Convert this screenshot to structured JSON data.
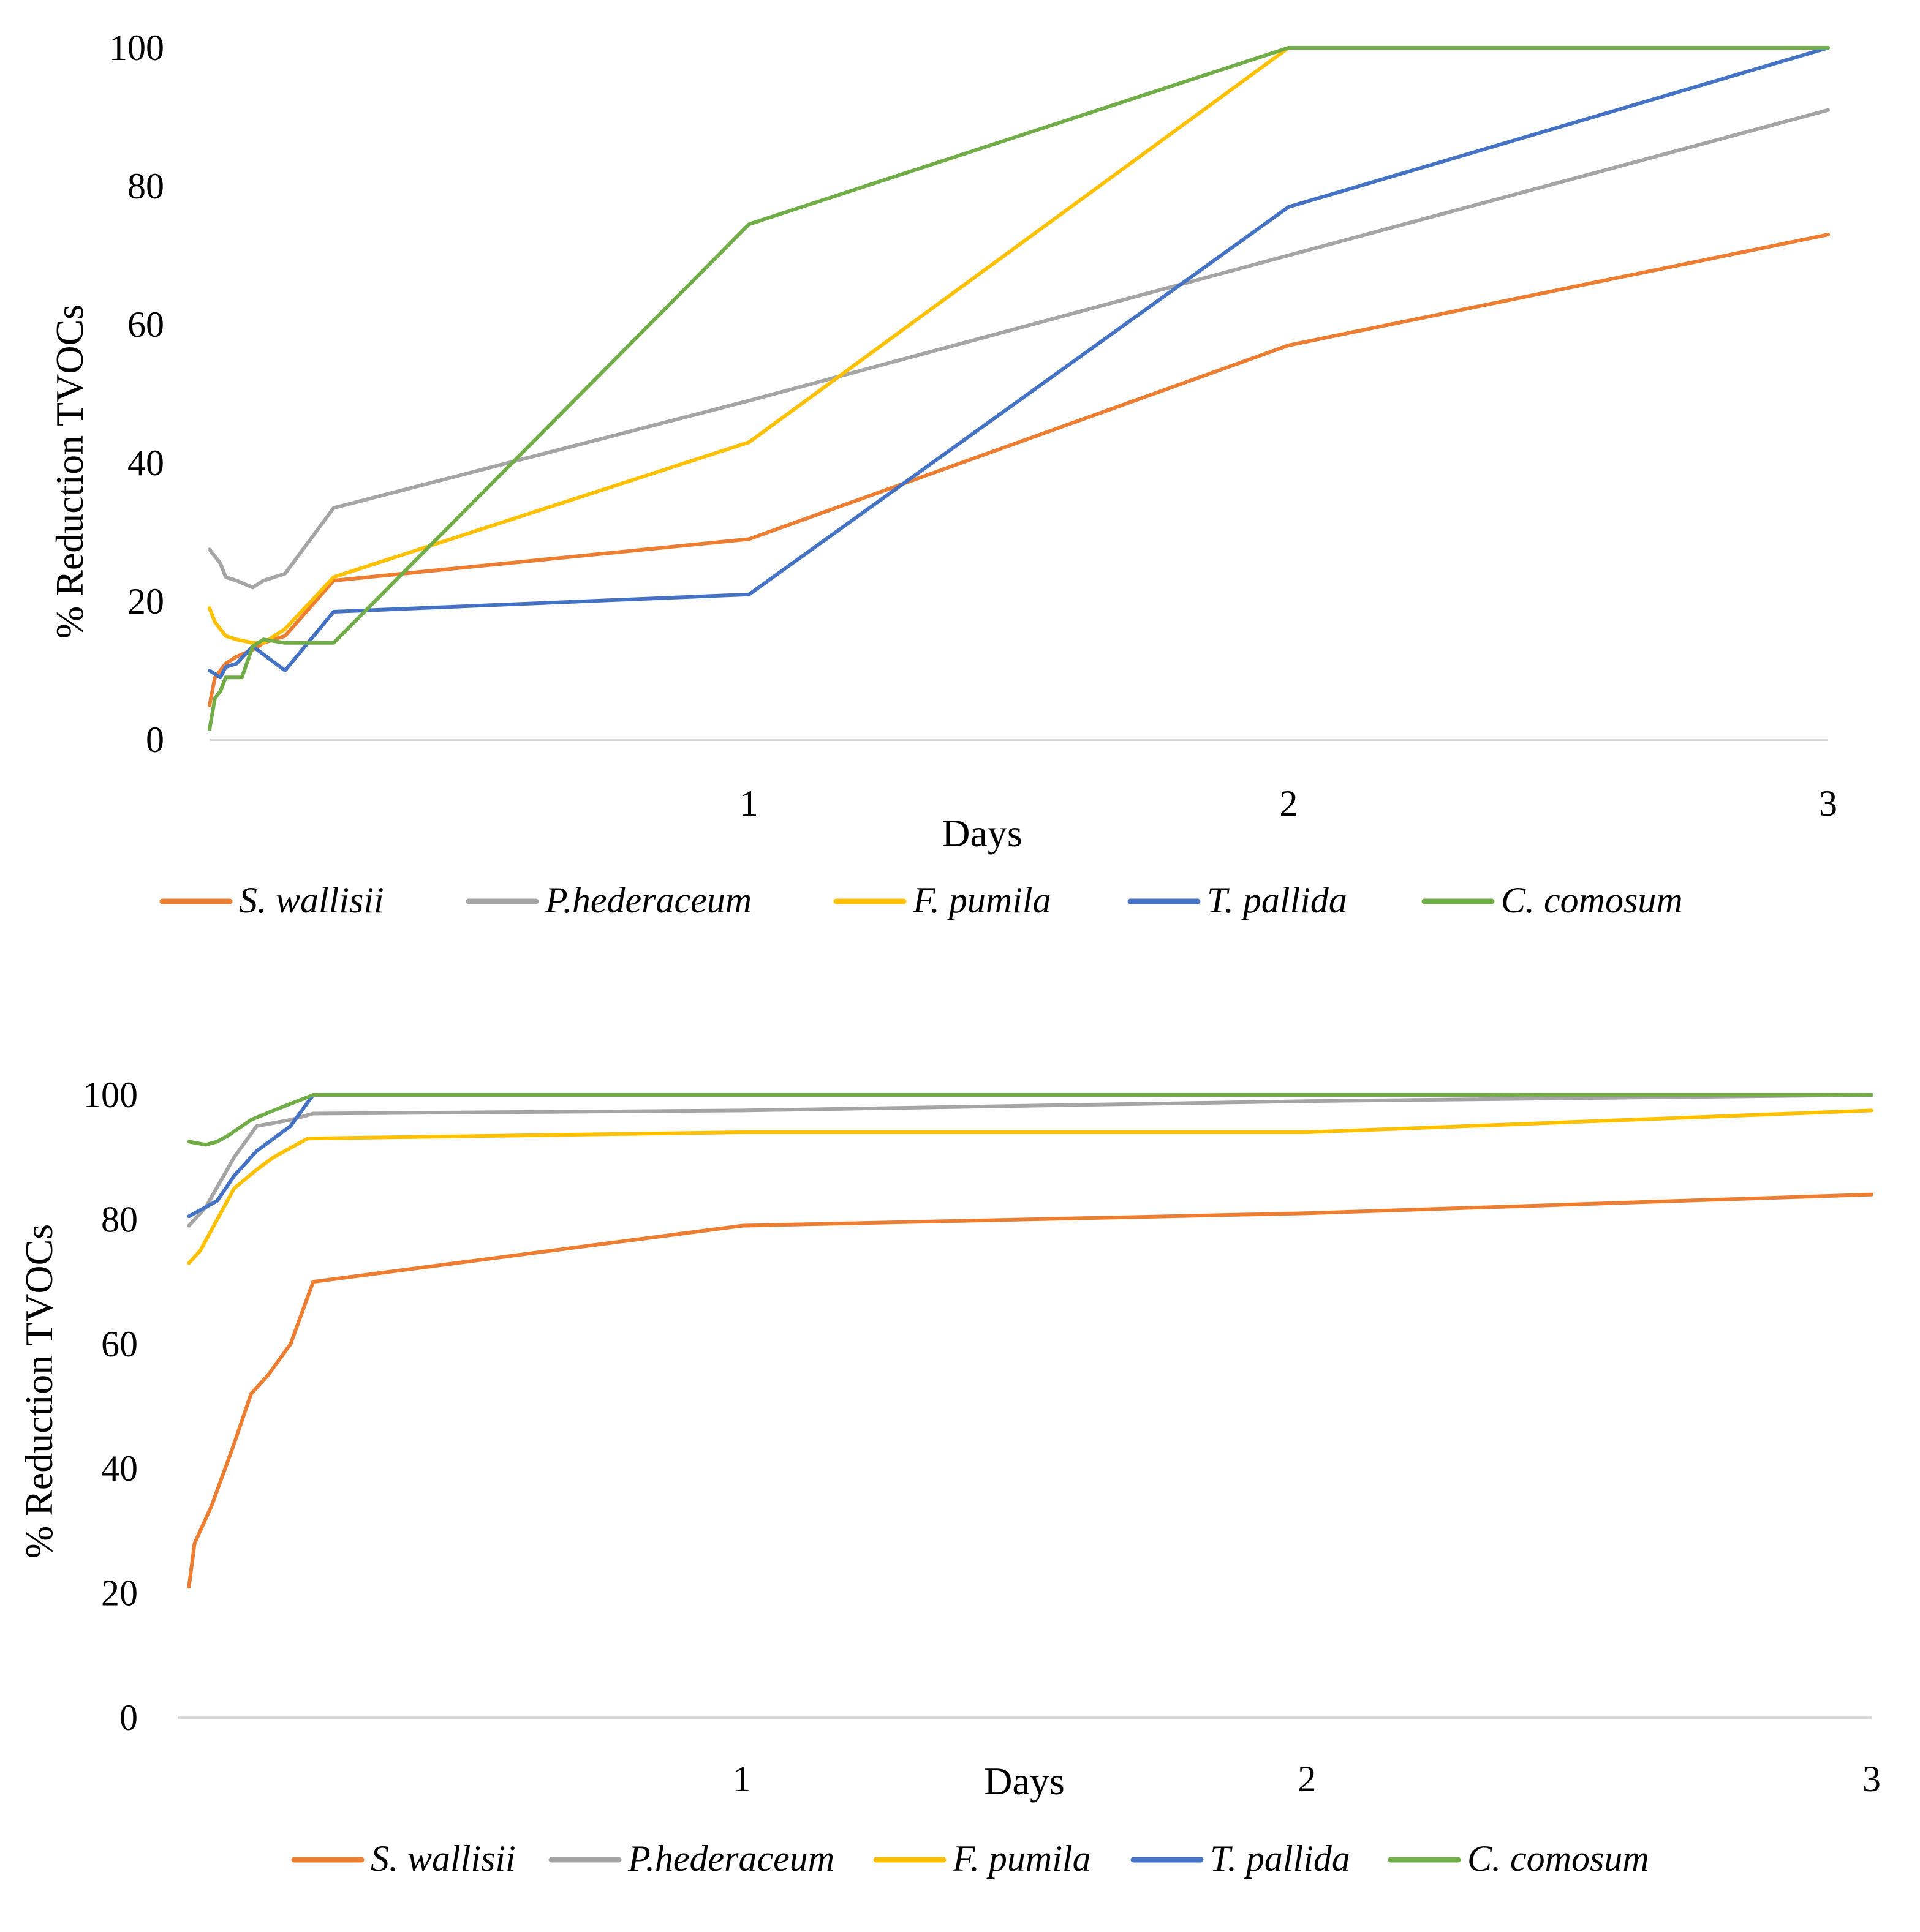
{
  "chart_data": [
    {
      "type": "line",
      "title": "",
      "xlabel": "Days",
      "ylabel": "% Reduction TVOCs",
      "ylim": [
        0,
        100
      ],
      "yticks": [
        0,
        20,
        40,
        60,
        80,
        100
      ],
      "xlim": [
        0,
        3
      ],
      "xticks": [
        1,
        2,
        3
      ],
      "xtick_labels": [
        "1",
        "2",
        "3"
      ],
      "grid": false,
      "legend": "bottom",
      "series": [
        {
          "name": "S. wallisii",
          "color": "#ED7D31",
          "x": [
            0,
            0.01,
            0.03,
            0.05,
            0.08,
            0.1,
            0.14,
            0.23,
            1,
            2,
            3
          ],
          "y": [
            5,
            9,
            11,
            12,
            13,
            14,
            15,
            23,
            29,
            57,
            73
          ]
        },
        {
          "name": "P.hederaceum",
          "color": "#A5A5A5",
          "x": [
            0,
            0.01,
            0.02,
            0.03,
            0.05,
            0.08,
            0.1,
            0.14,
            0.23,
            1,
            2,
            3
          ],
          "y": [
            27.5,
            26.5,
            25.5,
            23.5,
            23,
            22,
            23,
            24,
            33.5,
            49,
            70,
            91
          ]
        },
        {
          "name": "F. pumila",
          "color": "#FFC000",
          "x": [
            0,
            0.01,
            0.03,
            0.05,
            0.08,
            0.1,
            0.14,
            0.23,
            1,
            2,
            3
          ],
          "y": [
            19,
            17,
            15,
            14.5,
            14,
            14,
            16,
            23.5,
            43,
            100,
            100
          ]
        },
        {
          "name": "T. pallida",
          "color": "#4472C4",
          "x": [
            0,
            0.02,
            0.03,
            0.05,
            0.08,
            0.14,
            0.23,
            1,
            2,
            3
          ],
          "y": [
            10,
            9,
            10.5,
            11,
            13.5,
            10,
            18.5,
            21,
            77,
            100
          ]
        },
        {
          "name": "C. comosum",
          "color": "#70AD47",
          "x": [
            0,
            0.01,
            0.02,
            0.03,
            0.05,
            0.06,
            0.08,
            0.1,
            0.14,
            0.23,
            1,
            2,
            3
          ],
          "y": [
            1.5,
            6,
            7,
            9,
            9,
            9,
            13.5,
            14.5,
            14,
            14,
            74.5,
            100,
            100
          ]
        }
      ]
    },
    {
      "type": "line",
      "title": "",
      "xlabel": "Days",
      "ylabel": "% Reduction TVOCs",
      "ylim": [
        0,
        100
      ],
      "yticks": [
        0,
        20,
        40,
        60,
        80,
        100
      ],
      "xlim": [
        0,
        3
      ],
      "xticks": [
        1,
        2,
        3
      ],
      "xtick_labels": [
        "1",
        "2",
        "3"
      ],
      "grid": false,
      "legend": "bottom",
      "series": [
        {
          "name": "S. wallisii",
          "color": "#ED7D31",
          "x": [
            0.02,
            0.03,
            0.06,
            0.1,
            0.13,
            0.16,
            0.2,
            0.24,
            1,
            2,
            3
          ],
          "y": [
            21,
            28,
            34,
            44,
            52,
            55,
            60,
            70,
            79,
            81,
            84
          ]
        },
        {
          "name": "P.hederaceum",
          "color": "#A5A5A5",
          "x": [
            0.02,
            0.05,
            0.1,
            0.14,
            0.2,
            0.24,
            1,
            2,
            3
          ],
          "y": [
            79,
            82,
            90,
            95,
            96,
            97,
            97.5,
            99,
            100
          ]
        },
        {
          "name": "F. pumila",
          "color": "#FFC000",
          "x": [
            0.02,
            0.04,
            0.07,
            0.1,
            0.14,
            0.17,
            0.23,
            1,
            2,
            3
          ],
          "y": [
            73,
            75,
            80,
            85,
            88,
            90,
            93,
            94,
            94,
            97.5
          ]
        },
        {
          "name": "T. pallida",
          "color": "#4472C4",
          "x": [
            0.02,
            0.05,
            0.07,
            0.1,
            0.14,
            0.2,
            0.24,
            1,
            2,
            3
          ],
          "y": [
            80.5,
            82,
            83,
            87,
            91,
            95,
            100,
            100,
            100,
            100
          ]
        },
        {
          "name": "C. comosum",
          "color": "#70AD47",
          "x": [
            0.02,
            0.05,
            0.07,
            0.09,
            0.13,
            0.17,
            0.24,
            1,
            2,
            3
          ],
          "y": [
            92.5,
            92,
            92.5,
            93.5,
            96,
            97.5,
            100,
            100,
            100,
            100
          ]
        }
      ]
    }
  ]
}
